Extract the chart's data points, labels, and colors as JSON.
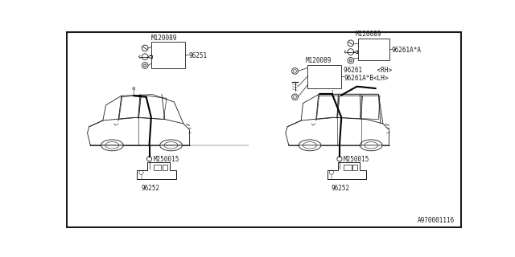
{
  "bg_color": "#ffffff",
  "border_color": "#000000",
  "line_color": "#1a1a1a",
  "text_color": "#1a1a1a",
  "fig_width": 6.4,
  "fig_height": 3.2,
  "dpi": 100,
  "watermark": "A970001116",
  "font_size_labels": 5.5,
  "font_size_watermark": 5.5,
  "left_labels": {
    "bolt_top": "M120089",
    "part_box": "96251",
    "nut": "M250015",
    "jack": "96252"
  },
  "right_labels": {
    "bolt_top": "M120089",
    "bolt_top2": "M120089",
    "part_box_top": "96261A*A",
    "part_box_mid1": "96261    <RH>",
    "part_box_mid2": "96261A*B<LH>",
    "nut": "M250015",
    "jack": "96252"
  }
}
